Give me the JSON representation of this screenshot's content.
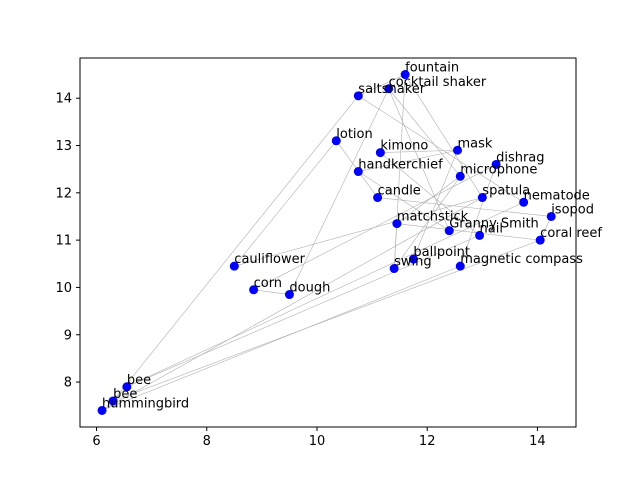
{
  "chart_data": {
    "type": "scatter",
    "title": "",
    "xlabel": "",
    "ylabel": "",
    "xlim": [
      5.7,
      14.7
    ],
    "ylim": [
      7.05,
      14.85
    ],
    "x_ticks": [
      6,
      8,
      10,
      12,
      14
    ],
    "y_ticks": [
      8,
      9,
      10,
      11,
      12,
      13,
      14
    ],
    "grid": false,
    "colors": {
      "point": "#0000ff",
      "edge": "#b0b0b0",
      "axis": "#000000"
    },
    "points": [
      {
        "label": "fountain",
        "x": 11.6,
        "y": 14.5
      },
      {
        "label": "cocktail shaker",
        "x": 11.3,
        "y": 14.2
      },
      {
        "label": "saltshaker",
        "x": 10.75,
        "y": 14.05
      },
      {
        "label": "lotion",
        "x": 10.35,
        "y": 13.1
      },
      {
        "label": "kimono",
        "x": 11.15,
        "y": 12.85
      },
      {
        "label": "mask",
        "x": 12.55,
        "y": 12.9
      },
      {
        "label": "dishrag",
        "x": 13.25,
        "y": 12.6
      },
      {
        "label": "microphone",
        "x": 12.6,
        "y": 12.35
      },
      {
        "label": "handkerchief",
        "x": 10.75,
        "y": 12.45
      },
      {
        "label": "candle",
        "x": 11.1,
        "y": 11.9
      },
      {
        "label": "spatula",
        "x": 13.0,
        "y": 11.9
      },
      {
        "label": "nematode",
        "x": 13.75,
        "y": 11.8
      },
      {
        "label": "isopod",
        "x": 14.25,
        "y": 11.5
      },
      {
        "label": "matchstick",
        "x": 11.45,
        "y": 11.35
      },
      {
        "label": "Granny Smith",
        "x": 12.4,
        "y": 11.2
      },
      {
        "label": "nail",
        "x": 12.95,
        "y": 11.1
      },
      {
        "label": "coral reef",
        "x": 14.05,
        "y": 11.0
      },
      {
        "label": "ballpoint",
        "x": 11.75,
        "y": 10.6
      },
      {
        "label": "swing",
        "x": 11.4,
        "y": 10.4
      },
      {
        "label": "magnetic compass",
        "x": 12.6,
        "y": 10.45
      },
      {
        "label": "cauliflower",
        "x": 8.5,
        "y": 10.45
      },
      {
        "label": "corn",
        "x": 8.85,
        "y": 9.95
      },
      {
        "label": "dough",
        "x": 9.5,
        "y": 9.85
      },
      {
        "label": "bee",
        "x": 6.55,
        "y": 7.9
      },
      {
        "label": "bee",
        "x": 6.3,
        "y": 7.6
      },
      {
        "label": "hummingbird",
        "x": 6.1,
        "y": 7.4
      }
    ],
    "edges": [
      [
        0,
        2
      ],
      [
        0,
        10
      ],
      [
        0,
        18
      ],
      [
        1,
        7
      ],
      [
        1,
        14
      ],
      [
        1,
        22
      ],
      [
        2,
        24
      ],
      [
        2,
        11
      ],
      [
        3,
        20
      ],
      [
        3,
        9
      ],
      [
        4,
        15
      ],
      [
        4,
        5
      ],
      [
        5,
        17
      ],
      [
        5,
        8
      ],
      [
        6,
        19
      ],
      [
        6,
        21
      ],
      [
        7,
        18
      ],
      [
        7,
        13
      ],
      [
        8,
        14
      ],
      [
        9,
        12
      ],
      [
        10,
        20
      ],
      [
        10,
        25
      ],
      [
        11,
        23
      ],
      [
        12,
        16
      ],
      [
        13,
        16
      ],
      [
        13,
        18
      ],
      [
        15,
        23
      ],
      [
        16,
        24
      ],
      [
        19,
        25
      ],
      [
        21,
        22
      ],
      [
        23,
        24
      ],
      [
        24,
        25
      ]
    ]
  }
}
